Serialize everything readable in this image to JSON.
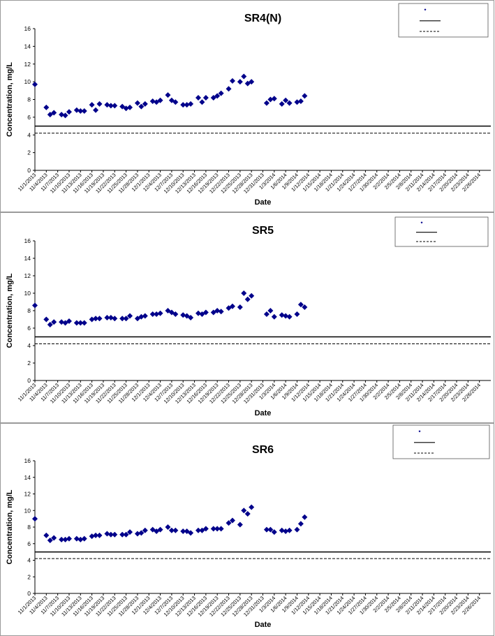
{
  "chart_data": [
    {
      "type": "scatter",
      "title": "SR4(N)",
      "xlabel": "Date",
      "ylabel": "Concentration, mg/L",
      "ylim": [
        0,
        16
      ],
      "yticks": [
        0,
        2,
        4,
        6,
        8,
        10,
        12,
        14,
        16
      ],
      "grid": false,
      "legend_placement": "top-right",
      "xticks": [
        "11/1/2013",
        "11/4/2013",
        "11/7/2013",
        "11/10/2013",
        "11/13/2013",
        "11/16/2013",
        "11/19/2013",
        "11/22/2013",
        "11/25/2013",
        "11/28/2013",
        "12/1/2013",
        "12/4/2013",
        "12/7/2013",
        "12/10/2013",
        "12/13/2013",
        "12/16/2013",
        "12/19/2013",
        "12/22/2013",
        "12/25/2013",
        "12/28/2013",
        "12/31/2013",
        "1/3/2014",
        "1/6/2014",
        "1/9/2014",
        "1/12/2014",
        "1/15/2014",
        "1/18/2014",
        "1/21/2014",
        "1/24/2014",
        "1/27/2014",
        "1/30/2014",
        "2/2/2014",
        "2/5/2014",
        "2/8/2014",
        "2/11/2014",
        "2/14/2014",
        "2/17/2014",
        "2/20/2014",
        "2/23/2014",
        "2/26/2014"
      ],
      "xlim": [
        "11/1/2013",
        "3/1/2014"
      ],
      "reference_lines": [
        {
          "style": "solid",
          "value": 5.0
        },
        {
          "style": "dashed",
          "value": 4.2
        }
      ],
      "marker_color": "#00008b",
      "points": [
        [
          "11/1/2013",
          9.7
        ],
        [
          "11/4/2013",
          7.1
        ],
        [
          "11/5/2013",
          6.3
        ],
        [
          "11/6/2013",
          6.5
        ],
        [
          "11/8/2013",
          6.3
        ],
        [
          "11/9/2013",
          6.2
        ],
        [
          "11/10/2013",
          6.6
        ],
        [
          "11/12/2013",
          6.8
        ],
        [
          "11/13/2013",
          6.7
        ],
        [
          "11/14/2013",
          6.7
        ],
        [
          "11/16/2013",
          7.4
        ],
        [
          "11/17/2013",
          6.8
        ],
        [
          "11/18/2013",
          7.5
        ],
        [
          "11/20/2013",
          7.4
        ],
        [
          "11/21/2013",
          7.3
        ],
        [
          "11/22/2013",
          7.3
        ],
        [
          "11/24/2013",
          7.2
        ],
        [
          "11/25/2013",
          7.0
        ],
        [
          "11/26/2013",
          7.1
        ],
        [
          "11/28/2013",
          7.6
        ],
        [
          "11/29/2013",
          7.2
        ],
        [
          "11/30/2013",
          7.5
        ],
        [
          "12/2/2013",
          7.8
        ],
        [
          "12/3/2013",
          7.7
        ],
        [
          "12/4/2013",
          7.9
        ],
        [
          "12/6/2013",
          8.5
        ],
        [
          "12/7/2013",
          7.9
        ],
        [
          "12/8/2013",
          7.7
        ],
        [
          "12/10/2013",
          7.4
        ],
        [
          "12/11/2013",
          7.4
        ],
        [
          "12/12/2013",
          7.5
        ],
        [
          "12/14/2013",
          8.2
        ],
        [
          "12/15/2013",
          7.7
        ],
        [
          "12/16/2013",
          8.2
        ],
        [
          "12/18/2013",
          8.2
        ],
        [
          "12/19/2013",
          8.4
        ],
        [
          "12/20/2013",
          8.7
        ],
        [
          "12/22/2013",
          9.2
        ],
        [
          "12/23/2013",
          10.1
        ],
        [
          "12/25/2013",
          10.0
        ],
        [
          "12/26/2013",
          10.6
        ],
        [
          "12/27/2013",
          9.8
        ],
        [
          "12/28/2013",
          10.0
        ],
        [
          "1/1/2014",
          7.6
        ],
        [
          "1/2/2014",
          8.0
        ],
        [
          "1/3/2014",
          8.1
        ],
        [
          "1/5/2014",
          7.5
        ],
        [
          "1/6/2014",
          7.9
        ],
        [
          "1/7/2014",
          7.6
        ],
        [
          "1/9/2014",
          7.7
        ],
        [
          "1/10/2014",
          7.8
        ],
        [
          "1/11/2014",
          8.4
        ]
      ]
    },
    {
      "type": "scatter",
      "title": "SR5",
      "xlabel": "Date",
      "ylabel": "Concentration, mg/L",
      "ylim": [
        0,
        16
      ],
      "yticks": [
        0,
        2,
        4,
        6,
        8,
        10,
        12,
        14,
        16
      ],
      "grid": false,
      "legend_placement": "top-right",
      "xticks": [
        "11/1/2013",
        "11/4/2013",
        "11/7/2013",
        "11/10/2013",
        "11/13/2013",
        "11/16/2013",
        "11/19/2013",
        "11/22/2013",
        "11/25/2013",
        "11/28/2013",
        "12/1/2013",
        "12/4/2013",
        "12/7/2013",
        "12/10/2013",
        "12/13/2013",
        "12/16/2013",
        "12/19/2013",
        "12/22/2013",
        "12/25/2013",
        "12/28/2013",
        "12/31/2013",
        "1/3/2014",
        "1/6/2014",
        "1/9/2014",
        "1/12/2014",
        "1/15/2014",
        "1/18/2014",
        "1/21/2014",
        "1/24/2014",
        "1/27/2014",
        "1/30/2014",
        "2/2/2014",
        "2/5/2014",
        "2/8/2014",
        "2/11/2014",
        "2/14/2014",
        "2/17/2014",
        "2/20/2014",
        "2/23/2014",
        "2/26/2014"
      ],
      "xlim": [
        "11/1/2013",
        "3/1/2014"
      ],
      "reference_lines": [
        {
          "style": "solid",
          "value": 5.0
        },
        {
          "style": "dashed",
          "value": 4.2
        }
      ],
      "marker_color": "#00008b",
      "points": [
        [
          "11/1/2013",
          8.6
        ],
        [
          "11/4/2013",
          7.0
        ],
        [
          "11/5/2013",
          6.4
        ],
        [
          "11/6/2013",
          6.7
        ],
        [
          "11/8/2013",
          6.7
        ],
        [
          "11/9/2013",
          6.6
        ],
        [
          "11/10/2013",
          6.8
        ],
        [
          "11/12/2013",
          6.6
        ],
        [
          "11/13/2013",
          6.6
        ],
        [
          "11/14/2013",
          6.6
        ],
        [
          "11/16/2013",
          7.0
        ],
        [
          "11/17/2013",
          7.1
        ],
        [
          "11/18/2013",
          7.1
        ],
        [
          "11/20/2013",
          7.2
        ],
        [
          "11/21/2013",
          7.2
        ],
        [
          "11/22/2013",
          7.1
        ],
        [
          "11/24/2013",
          7.1
        ],
        [
          "11/25/2013",
          7.1
        ],
        [
          "11/26/2013",
          7.4
        ],
        [
          "11/28/2013",
          7.1
        ],
        [
          "11/29/2013",
          7.3
        ],
        [
          "11/30/2013",
          7.4
        ],
        [
          "12/2/2013",
          7.6
        ],
        [
          "12/3/2013",
          7.6
        ],
        [
          "12/4/2013",
          7.7
        ],
        [
          "12/6/2013",
          8.0
        ],
        [
          "12/7/2013",
          7.8
        ],
        [
          "12/8/2013",
          7.6
        ],
        [
          "12/10/2013",
          7.5
        ],
        [
          "12/11/2013",
          7.4
        ],
        [
          "12/12/2013",
          7.2
        ],
        [
          "12/14/2013",
          7.7
        ],
        [
          "12/15/2013",
          7.6
        ],
        [
          "12/16/2013",
          7.8
        ],
        [
          "12/18/2013",
          7.8
        ],
        [
          "12/19/2013",
          8.0
        ],
        [
          "12/20/2013",
          7.9
        ],
        [
          "12/22/2013",
          8.3
        ],
        [
          "12/23/2013",
          8.5
        ],
        [
          "12/25/2013",
          8.4
        ],
        [
          "12/26/2013",
          10.0
        ],
        [
          "12/27/2013",
          9.3
        ],
        [
          "12/28/2013",
          9.7
        ],
        [
          "1/1/2014",
          7.6
        ],
        [
          "1/2/2014",
          8.0
        ],
        [
          "1/3/2014",
          7.3
        ],
        [
          "1/5/2014",
          7.5
        ],
        [
          "1/6/2014",
          7.4
        ],
        [
          "1/7/2014",
          7.3
        ],
        [
          "1/9/2014",
          7.6
        ],
        [
          "1/10/2014",
          8.7
        ],
        [
          "1/11/2014",
          8.4
        ]
      ]
    },
    {
      "type": "scatter",
      "title": "SR6",
      "xlabel": "Date",
      "ylabel": "Concentration, mg/L",
      "ylim": [
        0,
        16
      ],
      "yticks": [
        0,
        2,
        4,
        6,
        8,
        10,
        12,
        14,
        16
      ],
      "grid": false,
      "legend_placement": "top-right",
      "xticks": [
        "11/1/2013",
        "11/4/2013",
        "11/7/2013",
        "11/10/2013",
        "11/13/2013",
        "11/16/2013",
        "11/19/2013",
        "11/22/2013",
        "11/25/2013",
        "11/28/2013",
        "12/1/2013",
        "12/4/2013",
        "12/7/2013",
        "12/10/2013",
        "12/13/2013",
        "12/16/2013",
        "12/19/2013",
        "12/22/2013",
        "12/25/2013",
        "12/28/2013",
        "12/31/2013",
        "1/3/2014",
        "1/6/2014",
        "1/9/2014",
        "1/12/2014",
        "1/15/2014",
        "1/18/2014",
        "1/21/2014",
        "1/24/2014",
        "1/27/2014",
        "1/30/2014",
        "2/2/2014",
        "2/5/2014",
        "2/8/2014",
        "2/11/2014",
        "2/14/2014",
        "2/17/2014",
        "2/20/2014",
        "2/23/2014",
        "2/26/2014"
      ],
      "xlim": [
        "11/1/2013",
        "3/1/2014"
      ],
      "reference_lines": [
        {
          "style": "solid",
          "value": 5.0
        },
        {
          "style": "dashed",
          "value": 4.2
        }
      ],
      "marker_color": "#00008b",
      "points": [
        [
          "11/1/2013",
          9.0
        ],
        [
          "11/4/2013",
          7.0
        ],
        [
          "11/5/2013",
          6.4
        ],
        [
          "11/6/2013",
          6.7
        ],
        [
          "11/8/2013",
          6.5
        ],
        [
          "11/9/2013",
          6.5
        ],
        [
          "11/10/2013",
          6.6
        ],
        [
          "11/12/2013",
          6.6
        ],
        [
          "11/13/2013",
          6.5
        ],
        [
          "11/14/2013",
          6.6
        ],
        [
          "11/16/2013",
          6.9
        ],
        [
          "11/17/2013",
          7.0
        ],
        [
          "11/18/2013",
          7.0
        ],
        [
          "11/20/2013",
          7.2
        ],
        [
          "11/21/2013",
          7.1
        ],
        [
          "11/22/2013",
          7.1
        ],
        [
          "11/24/2013",
          7.1
        ],
        [
          "11/25/2013",
          7.1
        ],
        [
          "11/26/2013",
          7.4
        ],
        [
          "11/28/2013",
          7.2
        ],
        [
          "11/29/2013",
          7.3
        ],
        [
          "11/30/2013",
          7.6
        ],
        [
          "12/2/2013",
          7.7
        ],
        [
          "12/3/2013",
          7.5
        ],
        [
          "12/4/2013",
          7.7
        ],
        [
          "12/6/2013",
          8.0
        ],
        [
          "12/7/2013",
          7.6
        ],
        [
          "12/8/2013",
          7.6
        ],
        [
          "12/10/2013",
          7.5
        ],
        [
          "12/11/2013",
          7.5
        ],
        [
          "12/12/2013",
          7.3
        ],
        [
          "12/14/2013",
          7.6
        ],
        [
          "12/15/2013",
          7.6
        ],
        [
          "12/16/2013",
          7.8
        ],
        [
          "12/18/2013",
          7.8
        ],
        [
          "12/19/2013",
          7.8
        ],
        [
          "12/20/2013",
          7.8
        ],
        [
          "12/22/2013",
          8.5
        ],
        [
          "12/23/2013",
          8.8
        ],
        [
          "12/25/2013",
          8.3
        ],
        [
          "12/26/2013",
          10.0
        ],
        [
          "12/27/2013",
          9.6
        ],
        [
          "12/28/2013",
          10.4
        ],
        [
          "1/1/2014",
          7.7
        ],
        [
          "1/2/2014",
          7.7
        ],
        [
          "1/3/2014",
          7.4
        ],
        [
          "1/5/2014",
          7.6
        ],
        [
          "1/6/2014",
          7.5
        ],
        [
          "1/7/2014",
          7.6
        ],
        [
          "1/9/2014",
          7.7
        ],
        [
          "1/10/2014",
          8.4
        ],
        [
          "1/11/2014",
          9.2
        ]
      ]
    }
  ]
}
